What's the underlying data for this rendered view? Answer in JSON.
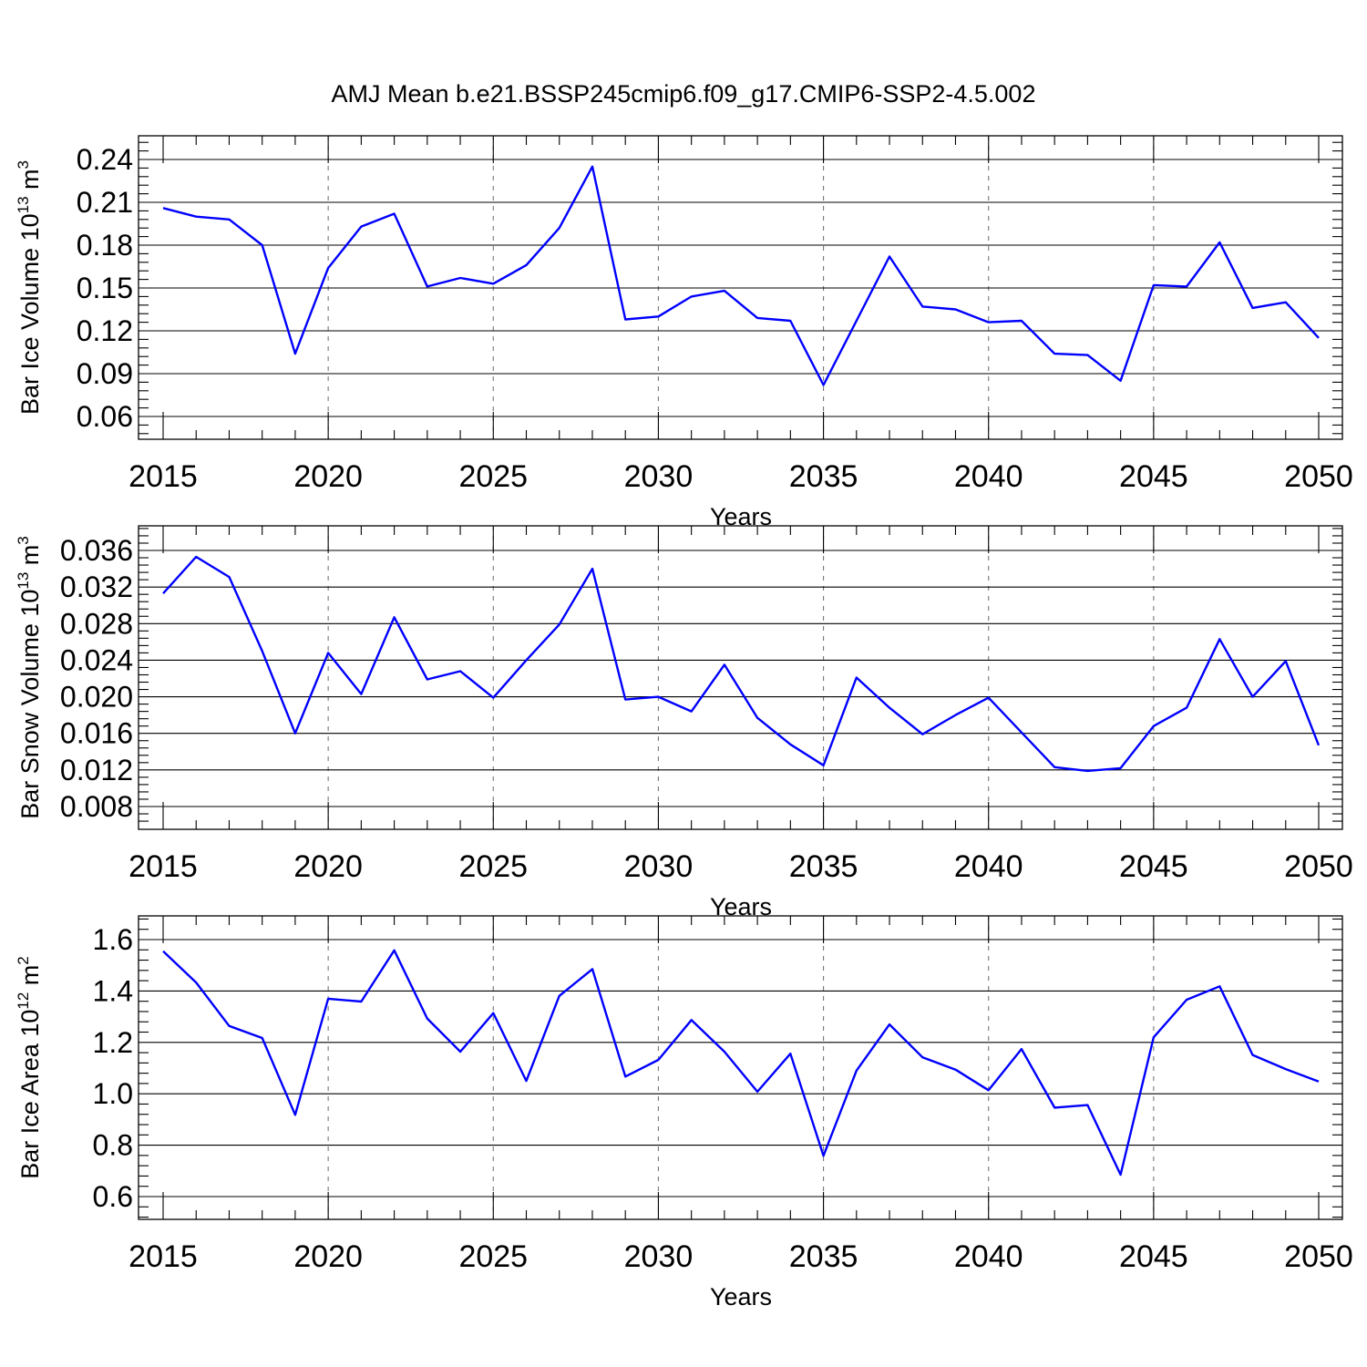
{
  "title": "AMJ Mean b.e21.BSSP245cmip6.f09_g17.CMIP6-SSP2-4.5.002",
  "colors": {
    "series": "#0000ff",
    "grid": "#777777",
    "axis": "#000000"
  },
  "chart_data": [
    {
      "type": "line",
      "xlabel": "Years",
      "ylabel_parts": {
        "base": "Bar Ice Volume 10",
        "exp": "13",
        "unit": " m",
        "unit_exp": "3"
      },
      "xlim": [
        2015,
        2050
      ],
      "ylim": [
        0.06,
        0.24
      ],
      "xticks": [
        2015,
        2020,
        2025,
        2030,
        2035,
        2040,
        2045,
        2050
      ],
      "yticks": [
        "0.06",
        "0.09",
        "0.12",
        "0.15",
        "0.18",
        "0.21",
        "0.24"
      ],
      "grid": "vertical dashed at major x ticks",
      "x": [
        2015,
        2016,
        2017,
        2018,
        2019,
        2020,
        2021,
        2022,
        2023,
        2024,
        2025,
        2026,
        2027,
        2028,
        2029,
        2030,
        2031,
        2032,
        2033,
        2034,
        2035,
        2036,
        2037,
        2038,
        2039,
        2040,
        2041,
        2042,
        2043,
        2044,
        2045,
        2046,
        2047,
        2048,
        2049,
        2050
      ],
      "y": [
        0.206,
        0.2,
        0.198,
        0.18,
        0.104,
        0.164,
        0.193,
        0.202,
        0.151,
        0.157,
        0.153,
        0.166,
        0.192,
        0.235,
        0.128,
        0.13,
        0.144,
        0.148,
        0.129,
        0.127,
        0.082,
        0.127,
        0.172,
        0.137,
        0.135,
        0.126,
        0.127,
        0.104,
        0.103,
        0.085,
        0.152,
        0.151,
        0.182,
        0.136,
        0.14,
        0.115
      ]
    },
    {
      "type": "line",
      "xlabel": "Years",
      "ylabel_parts": {
        "base": "Bar Snow Volume 10",
        "exp": "13",
        "unit": " m",
        "unit_exp": "3"
      },
      "xlim": [
        2015,
        2050
      ],
      "ylim": [
        0.008,
        0.036
      ],
      "xticks": [
        2015,
        2020,
        2025,
        2030,
        2035,
        2040,
        2045,
        2050
      ],
      "yticks": [
        "0.008",
        "0.012",
        "0.016",
        "0.020",
        "0.024",
        "0.028",
        "0.032",
        "0.036"
      ],
      "grid": "vertical dashed at major x ticks",
      "x": [
        2015,
        2016,
        2017,
        2018,
        2019,
        2020,
        2021,
        2022,
        2023,
        2024,
        2025,
        2026,
        2027,
        2028,
        2029,
        2030,
        2031,
        2032,
        2033,
        2034,
        2035,
        2036,
        2037,
        2038,
        2039,
        2040,
        2041,
        2042,
        2043,
        2044,
        2045,
        2046,
        2047,
        2048,
        2049,
        2050
      ],
      "y": [
        0.0313,
        0.0353,
        0.0331,
        0.025,
        0.016,
        0.0248,
        0.0203,
        0.0287,
        0.0219,
        0.0228,
        0.0199,
        0.024,
        0.0279,
        0.034,
        0.0197,
        0.02,
        0.0184,
        0.0235,
        0.0177,
        0.0148,
        0.0125,
        0.0221,
        0.0188,
        0.0159,
        0.018,
        0.0199,
        0.0161,
        0.0123,
        0.0119,
        0.0122,
        0.0168,
        0.0188,
        0.0263,
        0.02,
        0.0239,
        0.0147
      ]
    },
    {
      "type": "line",
      "xlabel": "Years",
      "ylabel_parts": {
        "base": "Bar Ice Area 10",
        "exp": "12",
        "unit": " m",
        "unit_exp": "2"
      },
      "xlim": [
        2015,
        2050
      ],
      "ylim": [
        0.6,
        1.6
      ],
      "xticks": [
        2015,
        2020,
        2025,
        2030,
        2035,
        2040,
        2045,
        2050
      ],
      "yticks": [
        "0.6",
        "0.8",
        "1.0",
        "1.2",
        "1.4",
        "1.6"
      ],
      "grid": "vertical dashed at major x ticks",
      "x": [
        2015,
        2016,
        2017,
        2018,
        2019,
        2020,
        2021,
        2022,
        2023,
        2024,
        2025,
        2026,
        2027,
        2028,
        2029,
        2030,
        2031,
        2032,
        2033,
        2034,
        2035,
        2036,
        2037,
        2038,
        2039,
        2040,
        2041,
        2042,
        2043,
        2044,
        2045,
        2046,
        2047,
        2048,
        2049,
        2050
      ],
      "y": [
        1.555,
        1.433,
        1.264,
        1.217,
        0.918,
        1.37,
        1.359,
        1.558,
        1.293,
        1.164,
        1.314,
        1.05,
        1.381,
        1.485,
        1.067,
        1.132,
        1.287,
        1.164,
        1.008,
        1.156,
        0.759,
        1.09,
        1.27,
        1.142,
        1.094,
        1.014,
        1.174,
        0.946,
        0.956,
        0.685,
        1.22,
        1.366,
        1.418,
        1.151,
        1.096,
        1.048
      ]
    }
  ]
}
